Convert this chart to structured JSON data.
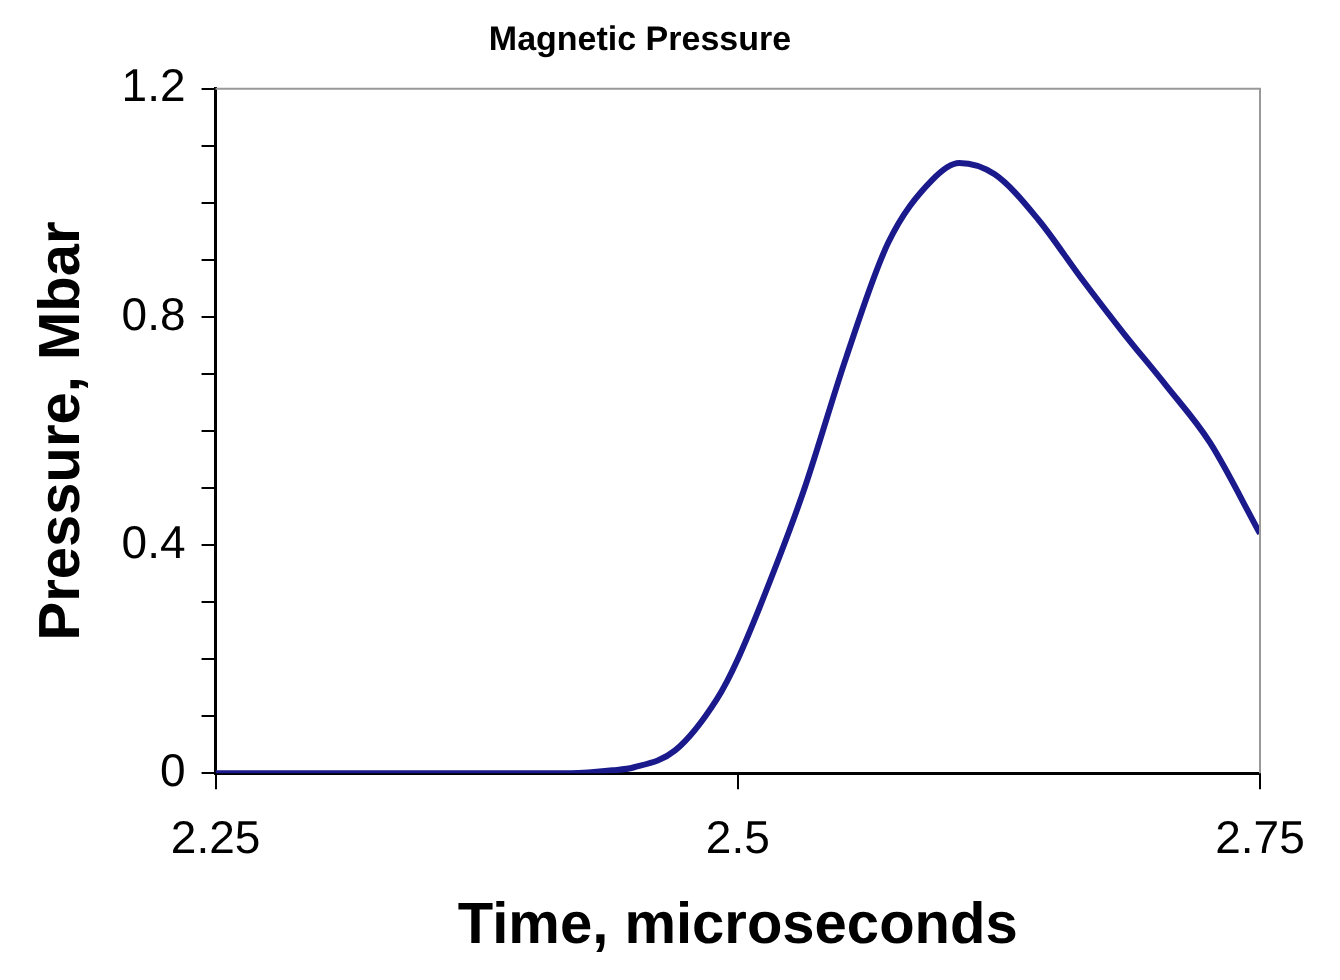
{
  "chart_data": {
    "type": "line",
    "title": "Magnetic Pressure",
    "xlabel": "Time, microseconds",
    "ylabel": "Pressure, Mbar",
    "x": [
      2.25,
      2.42,
      2.44,
      2.45,
      2.47,
      2.49,
      2.5,
      2.52,
      2.532,
      2.552,
      2.572,
      2.593,
      2.606,
      2.623,
      2.644,
      2.664,
      2.685,
      2.705,
      2.726,
      2.75
    ],
    "series": [
      {
        "color": "#1a1a8c",
        "values": [
          0,
          0,
          0.005,
          0.01,
          0.04,
          0.13,
          0.2,
          0.38,
          0.5,
          0.73,
          0.93,
          1.04,
          1.07,
          1.05,
          0.97,
          0.87,
          0.77,
          0.68,
          0.58,
          0.42
        ]
      }
    ],
    "xlim": [
      2.25,
      2.75
    ],
    "xticks": [
      2.25,
      2.5,
      2.75
    ],
    "ylim": [
      0,
      1.2
    ],
    "yticks": [
      0,
      {
        "value": 0.1,
        "label": null
      },
      {
        "value": 0.2,
        "label": null
      },
      {
        "value": 0.3,
        "label": null
      },
      0.4,
      {
        "value": 0.5,
        "label": null
      },
      {
        "value": 0.6,
        "label": null
      },
      {
        "value": 0.7,
        "label": null
      },
      0.8,
      {
        "value": 0.9,
        "label": null
      },
      {
        "value": 1.0,
        "label": null
      },
      {
        "value": 1.1,
        "label": null
      },
      1.2
    ],
    "grid": false,
    "legend": false,
    "marker": "none",
    "line_style": "solid"
  }
}
